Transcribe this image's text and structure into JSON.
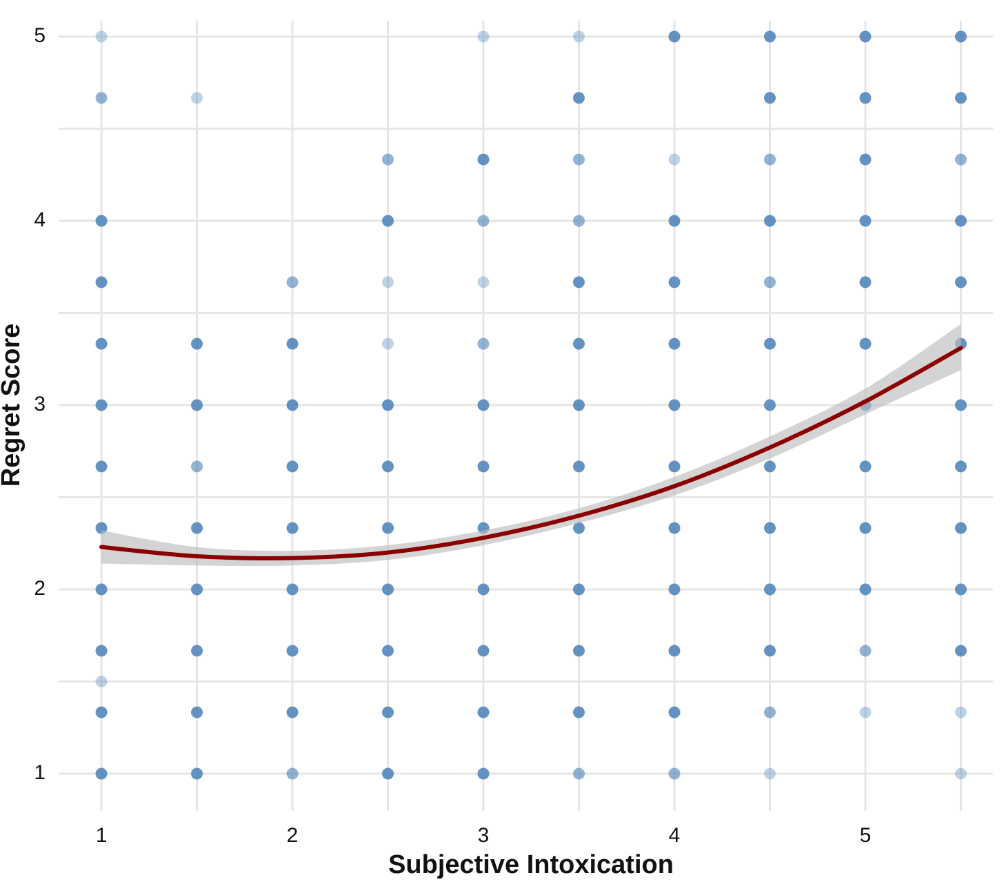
{
  "chart_data": {
    "type": "scatter",
    "x_label": "Subjective Intoxication",
    "y_label": "Regret Score",
    "xlim": [
      0.776,
      5.668
    ],
    "ylim": [
      0.798,
      5.086
    ],
    "xticks": [
      1,
      2,
      3,
      4,
      5
    ],
    "yticks": [
      1,
      2,
      3,
      4,
      5
    ],
    "x_minor_grid": [
      1.5,
      2.5,
      3.5,
      4.5,
      5.5
    ],
    "y_minor_grid": [
      1.5,
      2.5,
      3.5,
      4.5
    ],
    "grid": true,
    "color": "#4a80b6",
    "points": {
      "x": [
        1,
        1,
        1,
        1,
        1,
        1,
        1,
        1,
        1,
        1,
        1,
        1,
        1,
        1.5,
        1.5,
        1.5,
        1.5,
        1.5,
        1.5,
        1.5,
        1.5,
        1.5,
        2,
        2,
        2,
        2,
        2,
        2,
        2,
        2,
        2,
        2.5,
        2.5,
        2.5,
        2.5,
        2.5,
        2.5,
        2.5,
        2.5,
        2.5,
        2.5,
        2.5,
        3,
        3,
        3,
        3,
        3,
        3,
        3,
        3,
        3,
        3,
        3,
        3,
        3.5,
        3.5,
        3.5,
        3.5,
        3.5,
        3.5,
        3.5,
        3.5,
        3.5,
        3.5,
        3.5,
        3.5,
        3.5,
        4,
        4,
        4,
        4,
        4,
        4,
        4,
        4,
        4,
        4,
        4,
        4,
        4.5,
        4.5,
        4.5,
        4.5,
        4.5,
        4.5,
        4.5,
        4.5,
        4.5,
        4.5,
        4.5,
        4.5,
        4.5,
        5,
        5,
        5,
        5,
        5,
        5,
        5,
        5,
        5,
        5,
        5,
        5,
        5.5,
        5.5,
        5.5,
        5.5,
        5.5,
        5.5,
        5.5,
        5.5,
        5.5,
        5.5,
        5.5,
        5.5,
        5.5
      ],
      "values": [
        5,
        4.667,
        4,
        3.667,
        3.333,
        3,
        2.667,
        2.333,
        2,
        1.667,
        1.5,
        1.333,
        1,
        4.667,
        3.333,
        3,
        2.667,
        2.333,
        2,
        1.667,
        1.333,
        1,
        3.667,
        3.333,
        3,
        2.667,
        2.333,
        2,
        1.667,
        1.333,
        1,
        4.333,
        4,
        3.667,
        3.333,
        3,
        2.667,
        2.333,
        2,
        1.667,
        1.333,
        1,
        5,
        4.333,
        4,
        3.667,
        3.333,
        3,
        2.667,
        2.333,
        2,
        1.667,
        1.333,
        1,
        5,
        4.667,
        4.333,
        4,
        3.667,
        3.333,
        3,
        2.667,
        2.333,
        2,
        1.667,
        1.333,
        1,
        5,
        4.333,
        4,
        3.667,
        3.333,
        3,
        2.667,
        2.333,
        2,
        1.667,
        1.333,
        1,
        5,
        4.667,
        4.333,
        4,
        3.667,
        3.333,
        3,
        2.667,
        2.333,
        2,
        1.667,
        1.333,
        1,
        5,
        4.667,
        4.333,
        4,
        3.667,
        3.333,
        3,
        2.667,
        2.333,
        2,
        1.667,
        1.333,
        5,
        4.667,
        4.333,
        4,
        3.667,
        3.333,
        3,
        2.667,
        2.333,
        2,
        1.667,
        1.333,
        1
      ],
      "alpha": [
        0.35,
        0.6,
        0.85,
        0.85,
        0.85,
        0.85,
        0.85,
        0.85,
        0.85,
        0.85,
        0.35,
        0.85,
        0.85,
        0.35,
        0.85,
        0.85,
        0.6,
        0.85,
        0.85,
        0.85,
        0.85,
        0.85,
        0.6,
        0.85,
        0.85,
        0.85,
        0.85,
        0.85,
        0.85,
        0.85,
        0.6,
        0.6,
        0.85,
        0.35,
        0.35,
        0.85,
        0.85,
        0.85,
        0.85,
        0.85,
        0.85,
        0.85,
        0.35,
        0.85,
        0.6,
        0.35,
        0.6,
        0.85,
        0.85,
        0.85,
        0.85,
        0.85,
        0.85,
        0.85,
        0.35,
        0.85,
        0.6,
        0.6,
        0.85,
        0.85,
        0.85,
        0.85,
        0.85,
        0.85,
        0.85,
        0.85,
        0.6,
        0.85,
        0.35,
        0.85,
        0.85,
        0.85,
        0.85,
        0.85,
        0.85,
        0.85,
        0.85,
        0.85,
        0.6,
        0.85,
        0.85,
        0.6,
        0.85,
        0.6,
        0.85,
        0.85,
        0.85,
        0.85,
        0.85,
        0.85,
        0.6,
        0.35,
        0.85,
        0.85,
        0.85,
        0.85,
        0.85,
        0.85,
        0.85,
        0.85,
        0.85,
        0.85,
        0.6,
        0.35,
        0.85,
        0.85,
        0.6,
        0.85,
        0.85,
        0.85,
        0.85,
        0.85,
        0.85,
        0.85,
        0.85,
        0.35,
        0.35
      ]
    },
    "fit": {
      "color": "#8b0000",
      "band_color": "#bdbdbd",
      "x": [
        1,
        1.5,
        2,
        2.5,
        3,
        3.5,
        4,
        4.5,
        5,
        5.5
      ],
      "values": [
        2.23,
        2.18,
        2.17,
        2.2,
        2.28,
        2.4,
        2.56,
        2.77,
        3.02,
        3.31
      ],
      "lower": [
        2.14,
        2.13,
        2.13,
        2.16,
        2.24,
        2.36,
        2.51,
        2.71,
        2.95,
        3.19
      ],
      "upper": [
        2.32,
        2.23,
        2.21,
        2.24,
        2.32,
        2.44,
        2.61,
        2.83,
        3.09,
        3.44
      ]
    }
  }
}
